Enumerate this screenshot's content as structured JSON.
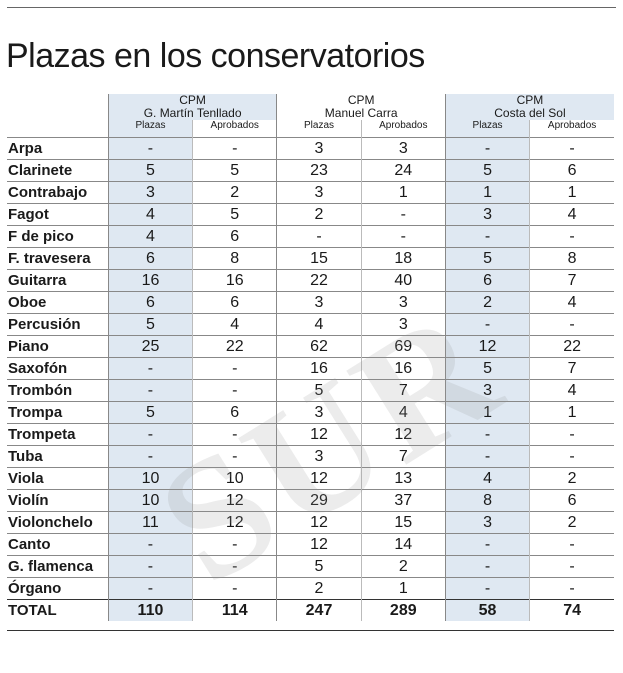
{
  "title": "Plazas en los conservatorios",
  "watermark": "SUR",
  "groups": [
    {
      "line1": "CPM",
      "line2": "G. Martín Tenllado"
    },
    {
      "line1": "CPM",
      "line2": "Manuel Carra"
    },
    {
      "line1": "CPM",
      "line2": "Costa del Sol"
    }
  ],
  "subheaders": [
    "Plazas",
    "Aprobados"
  ],
  "rows": [
    {
      "name": "Arpa",
      "v": [
        "-",
        "-",
        "3",
        "3",
        "-",
        "-"
      ]
    },
    {
      "name": "Clarinete",
      "v": [
        "5",
        "5",
        "23",
        "24",
        "5",
        "6"
      ]
    },
    {
      "name": "Contrabajo",
      "v": [
        "3",
        "2",
        "3",
        "1",
        "1",
        "1"
      ]
    },
    {
      "name": "Fagot",
      "v": [
        "4",
        "5",
        "2",
        "-",
        "3",
        "4"
      ]
    },
    {
      "name": "F de pico",
      "v": [
        "4",
        "6",
        "-",
        "-",
        "-",
        "-"
      ]
    },
    {
      "name": "F. travesera",
      "v": [
        "6",
        "8",
        "15",
        "18",
        "5",
        "8"
      ]
    },
    {
      "name": "Guitarra",
      "v": [
        "16",
        "16",
        "22",
        "40",
        "6",
        "7"
      ]
    },
    {
      "name": "Oboe",
      "v": [
        "6",
        "6",
        "3",
        "3",
        "2",
        "4"
      ]
    },
    {
      "name": "Percusión",
      "v": [
        "5",
        "4",
        "4",
        "3",
        "-",
        "-"
      ]
    },
    {
      "name": "Piano",
      "v": [
        "25",
        "22",
        "62",
        "69",
        "12",
        "22"
      ]
    },
    {
      "name": "Saxofón",
      "v": [
        "-",
        "-",
        "16",
        "16",
        "5",
        "7"
      ]
    },
    {
      "name": "Trombón",
      "v": [
        "-",
        "-",
        "5",
        "7",
        "3",
        "4"
      ]
    },
    {
      "name": "Trompa",
      "v": [
        "5",
        "6",
        "3",
        "4",
        "1",
        "1"
      ]
    },
    {
      "name": "Trompeta",
      "v": [
        "-",
        "-",
        "12",
        "12",
        "-",
        "-"
      ]
    },
    {
      "name": "Tuba",
      "v": [
        "-",
        "-",
        "3",
        "7",
        "-",
        "-"
      ]
    },
    {
      "name": "Viola",
      "v": [
        "10",
        "10",
        "12",
        "13",
        "4",
        "2"
      ]
    },
    {
      "name": "Violín",
      "v": [
        "10",
        "12",
        "29",
        "37",
        "8",
        "6"
      ]
    },
    {
      "name": "Violonchelo",
      "v": [
        "11",
        "12",
        "12",
        "15",
        "3",
        "2"
      ]
    },
    {
      "name": "Canto",
      "v": [
        "-",
        "-",
        "12",
        "14",
        "-",
        "-"
      ]
    },
    {
      "name": "G. flamenca",
      "v": [
        "-",
        "-",
        "5",
        "2",
        "-",
        "-"
      ]
    },
    {
      "name": "Órgano",
      "v": [
        "-",
        "-",
        "2",
        "1",
        "-",
        "-"
      ]
    }
  ],
  "total": {
    "name": "TOTAL",
    "v": [
      "110",
      "114",
      "247",
      "289",
      "58",
      "74"
    ]
  },
  "colors": {
    "shade": "#dfe8f2",
    "rule": "#888888"
  }
}
